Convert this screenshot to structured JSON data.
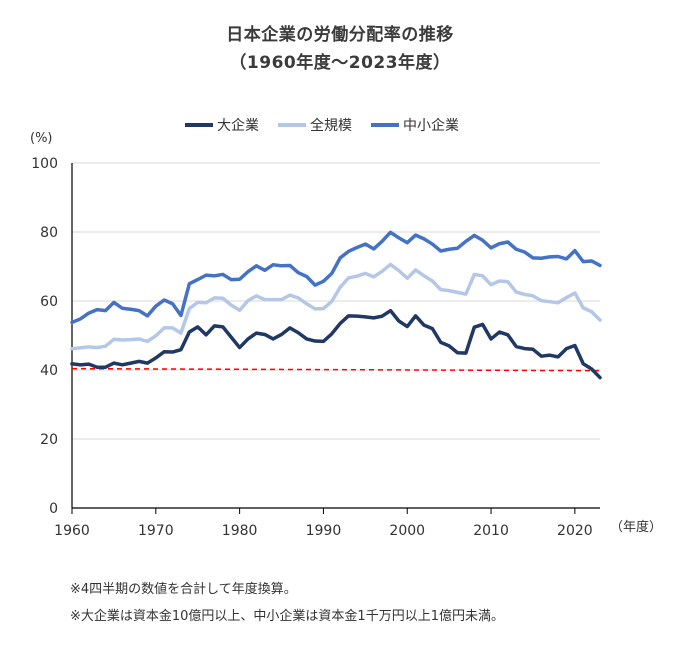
{
  "title": {
    "line1": "日本企業の労働分配率の推移",
    "line2": "（1960年度～2023年度）"
  },
  "notes": [
    "※4四半期の数値を合計して年度換算。",
    "※大企業は資本金10億円以上、中小企業は資本金1千万円以上1億円未満。"
  ],
  "chart_data": {
    "type": "line",
    "xlabel": "（年度）",
    "ylabel": "(%)",
    "xlim": [
      1960,
      2023
    ],
    "ylim": [
      0,
      100
    ],
    "xticks": [
      1960,
      1970,
      1980,
      1990,
      2000,
      2010,
      2020
    ],
    "yticks": [
      0,
      20,
      40,
      60,
      80,
      100
    ],
    "grid": true,
    "legend_position": "top-center",
    "x": [
      1960,
      1961,
      1962,
      1963,
      1964,
      1965,
      1966,
      1967,
      1968,
      1969,
      1970,
      1971,
      1972,
      1973,
      1974,
      1975,
      1976,
      1977,
      1978,
      1979,
      1980,
      1981,
      1982,
      1983,
      1984,
      1985,
      1986,
      1987,
      1988,
      1989,
      1990,
      1991,
      1992,
      1993,
      1994,
      1995,
      1996,
      1997,
      1998,
      1999,
      2000,
      2001,
      2002,
      2003,
      2004,
      2005,
      2006,
      2007,
      2008,
      2009,
      2010,
      2011,
      2012,
      2013,
      2014,
      2015,
      2016,
      2017,
      2018,
      2019,
      2020,
      2021,
      2022,
      2023
    ],
    "series": [
      {
        "name": "大企業",
        "color": "#1f3864",
        "values": [
          41.8,
          41.5,
          41.7,
          40.8,
          40.8,
          42.0,
          41.5,
          42.0,
          42.5,
          42.0,
          43.5,
          45.3,
          45.2,
          45.9,
          51.0,
          52.5,
          50.2,
          52.8,
          52.5,
          49.5,
          46.5,
          49.0,
          50.7,
          50.3,
          49.0,
          50.3,
          52.2,
          50.8,
          49.0,
          48.4,
          48.3,
          50.5,
          53.5,
          55.7,
          55.6,
          55.4,
          55.1,
          55.6,
          57.2,
          54.2,
          52.6,
          55.7,
          53.0,
          52.0,
          48.0,
          47.0,
          45.0,
          44.9,
          52.4,
          53.2,
          49.0,
          51.0,
          50.2,
          46.8,
          46.2,
          46.0,
          44.0,
          44.3,
          43.8,
          46.2,
          47.1,
          41.8,
          40.3,
          37.8
        ]
      },
      {
        "name": "全規模",
        "color": "#b4c7e7",
        "values": [
          46.2,
          46.4,
          46.7,
          46.5,
          46.9,
          48.9,
          48.7,
          48.8,
          49.0,
          48.3,
          49.9,
          52.2,
          52.2,
          50.7,
          57.8,
          59.6,
          59.5,
          60.9,
          60.8,
          58.8,
          57.3,
          60.1,
          61.5,
          60.4,
          60.4,
          60.4,
          61.7,
          60.9,
          59.2,
          57.7,
          57.8,
          59.9,
          64.0,
          66.7,
          67.2,
          68.0,
          67.0,
          68.6,
          70.6,
          68.8,
          66.6,
          69.0,
          67.3,
          65.8,
          63.3,
          63.0,
          62.5,
          62.0,
          67.7,
          67.3,
          64.7,
          65.8,
          65.6,
          62.6,
          61.9,
          61.5,
          60.1,
          59.8,
          59.5,
          61.0,
          62.3,
          58.0,
          56.9,
          54.5
        ]
      },
      {
        "name": "中小企業",
        "color": "#4472c4",
        "values": [
          53.8,
          54.8,
          56.5,
          57.5,
          57.2,
          59.6,
          57.9,
          57.6,
          57.2,
          55.7,
          58.5,
          60.3,
          59.2,
          55.8,
          65.0,
          66.2,
          67.5,
          67.3,
          67.7,
          66.2,
          66.3,
          68.5,
          70.2,
          68.9,
          70.5,
          70.2,
          70.3,
          68.2,
          67.1,
          64.6,
          65.7,
          68.0,
          72.5,
          74.4,
          75.5,
          76.5,
          75.1,
          77.3,
          79.9,
          78.3,
          76.9,
          79.1,
          78.0,
          76.5,
          74.5,
          75.0,
          75.3,
          77.3,
          79.0,
          77.6,
          75.4,
          76.6,
          77.1,
          75.0,
          74.2,
          72.5,
          72.4,
          72.8,
          72.9,
          72.2,
          74.6,
          71.4,
          71.6,
          70.3
        ]
      }
    ],
    "reference_line": {
      "color": "#ff0000",
      "values": [
        40.4,
        39.8
      ]
    }
  }
}
